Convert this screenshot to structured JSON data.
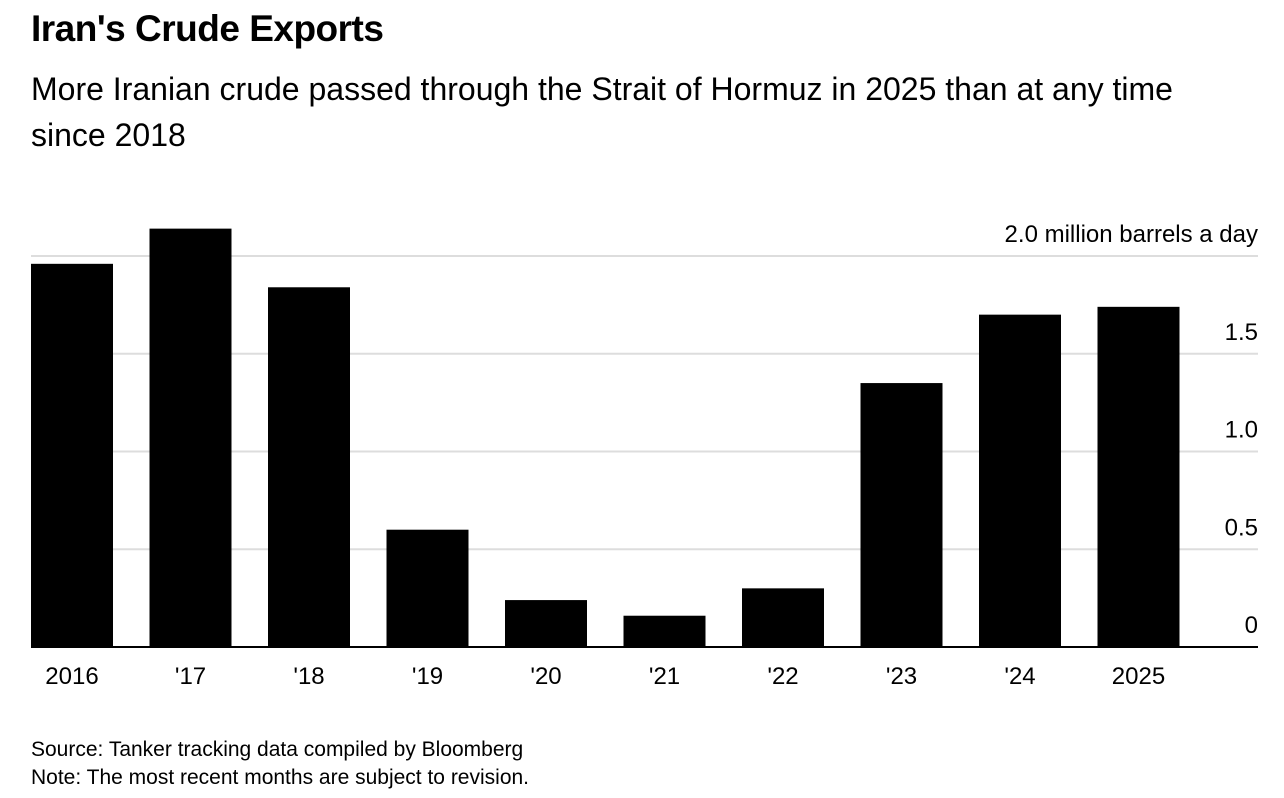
{
  "chart_data": {
    "type": "bar",
    "title": "Iran's Crude Exports",
    "subtitle": "More Iranian crude passed through the Strait of Hormuz in 2025 than at any time since 2018",
    "categories": [
      "2016",
      "'17",
      "'18",
      "'19",
      "'20",
      "'21",
      "'22",
      "'23",
      "'24",
      "2025"
    ],
    "values": [
      1.96,
      2.14,
      1.84,
      0.6,
      0.24,
      0.16,
      0.3,
      1.35,
      1.7,
      1.74
    ],
    "ylabel": "million barrels a day",
    "unit_label": "2.0 million barrels a day",
    "yticks": [
      0,
      0.5,
      1.0,
      1.5,
      2.0
    ],
    "ytick_labels": [
      "0",
      "0.5",
      "1.0",
      "1.5",
      "2.0 million barrels a day"
    ],
    "ylim": [
      0,
      2.0
    ],
    "grid": true,
    "bar_color": "#000000",
    "grid_color": "#dddddd"
  },
  "footer": {
    "source": "Source: Tanker tracking data compiled by Bloomberg",
    "note": "Note: The most recent months are subject to revision."
  }
}
